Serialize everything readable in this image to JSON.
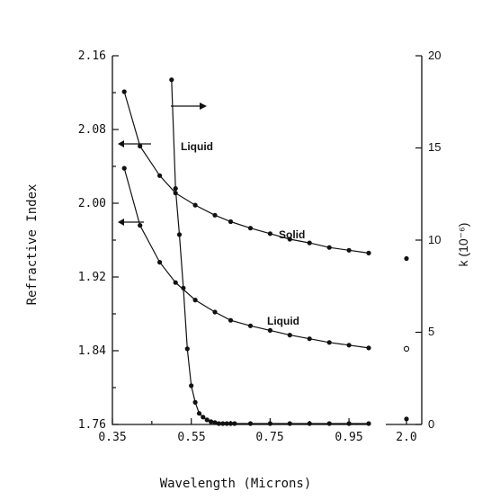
{
  "chart_data": {
    "type": "line",
    "xlabel": "Wavelength (Microns)",
    "ylabel_left": "Refractive Index",
    "ylabel_right": "k (10⁻⁶)",
    "xlim": [
      0.35,
      1.0
    ],
    "ylim_left": [
      1.76,
      2.16
    ],
    "ylim_right": [
      0,
      20
    ],
    "x_ticks": [
      "0.35",
      "0.55",
      "0.75",
      "0.95"
    ],
    "x_tick_break": "2.0",
    "y_ticks_left": [
      "1.76",
      "1.84",
      "1.92",
      "2.00",
      "2.08",
      "2.16"
    ],
    "y_ticks_right": [
      "0",
      "5",
      "10",
      "15",
      "20"
    ],
    "annotations": [
      "Solid",
      "Liquid",
      "Liquid"
    ],
    "series": [
      {
        "name": "Solid",
        "axis": "left",
        "x": [
          0.38,
          0.42,
          0.47,
          0.51,
          0.56,
          0.61,
          0.65,
          0.7,
          0.75,
          0.8,
          0.85,
          0.9,
          0.95,
          1.0
        ],
        "y": [
          2.121,
          2.062,
          2.03,
          2.011,
          1.998,
          1.987,
          1.98,
          1.973,
          1.967,
          1.961,
          1.957,
          1.952,
          1.949,
          1.946
        ]
      },
      {
        "name": "Liquid",
        "axis": "left",
        "x": [
          0.38,
          0.42,
          0.47,
          0.51,
          0.56,
          0.61,
          0.65,
          0.7,
          0.75,
          0.8,
          0.85,
          0.9,
          0.95,
          1.0
        ],
        "y": [
          2.038,
          1.976,
          1.936,
          1.914,
          1.895,
          1.882,
          1.873,
          1.867,
          1.862,
          1.857,
          1.853,
          1.849,
          1.846,
          1.843
        ]
      },
      {
        "name": "Liquid",
        "axis": "right",
        "x": [
          0.5,
          0.51,
          0.52,
          0.53,
          0.54,
          0.55,
          0.56,
          0.57,
          0.58,
          0.59,
          0.6,
          0.61,
          0.62,
          0.63,
          0.64,
          0.65,
          0.66,
          0.7,
          0.75,
          0.8,
          0.85,
          0.9,
          0.95,
          1.0
        ],
        "y": [
          18.7,
          12.8,
          10.3,
          7.4,
          4.1,
          2.1,
          1.2,
          0.6,
          0.4,
          0.25,
          0.15,
          0.1,
          0.05,
          0.05,
          0.05,
          0.05,
          0.05,
          0.05,
          0.05,
          0.05,
          0.05,
          0.05,
          0.05,
          0.05
        ]
      }
    ],
    "points_at_2_0": [
      {
        "marker": "filled",
        "k": 9.0
      },
      {
        "marker": "open",
        "k": 4.1
      },
      {
        "marker": "filled",
        "k": 0.3
      }
    ]
  }
}
